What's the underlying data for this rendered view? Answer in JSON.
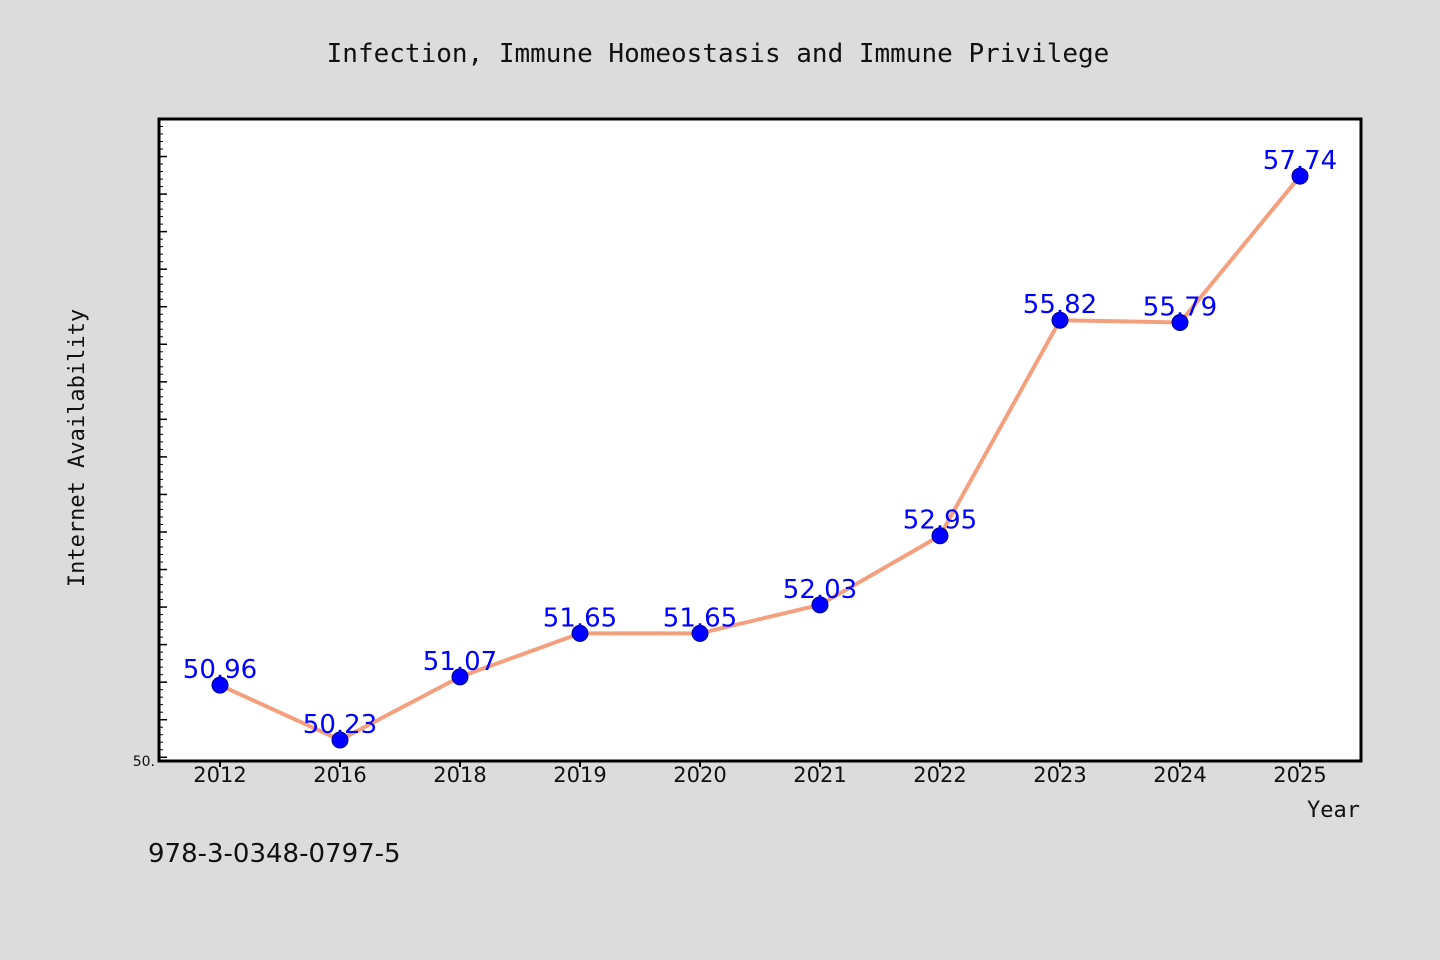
{
  "chart_data": {
    "type": "line",
    "title": "Infection, Immune Homeostasis and Immune Privilege",
    "xlabel": "Year",
    "ylabel": "Internet Availability",
    "categories": [
      "2012",
      "2016",
      "2018",
      "2019",
      "2020",
      "2021",
      "2022",
      "2023",
      "2024",
      "2025"
    ],
    "values": [
      50.96,
      50.23,
      51.07,
      51.65,
      51.65,
      52.03,
      52.95,
      55.82,
      55.79,
      57.74
    ],
    "data_labels": [
      "50.96",
      "50.23",
      "51.07",
      "51.65",
      "51.65",
      "52.03",
      "52.95",
      "55.82",
      "55.79",
      "57.74"
    ],
    "ylim": [
      49.95,
      58.5
    ],
    "y_tick_label": "50.",
    "grid": false,
    "line_color": "#f4a07e",
    "marker_color": "#0000ff",
    "label_color": "#0000ff"
  },
  "footer": {
    "isbn": "978-3-0348-0797-5"
  }
}
